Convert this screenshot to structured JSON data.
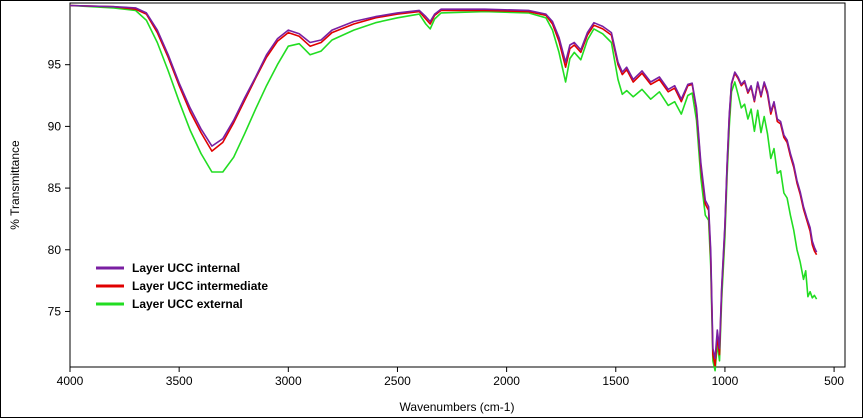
{
  "chart_data": {
    "type": "line",
    "xlabel": "Wavenumbers (cm-1)",
    "ylabel": "% Transmittance",
    "xlim": [
      4000,
      450
    ],
    "ylim": [
      70.5,
      100
    ],
    "x_ticks": [
      4000,
      3500,
      3000,
      2500,
      2000,
      1500,
      1000,
      500
    ],
    "y_ticks": [
      75,
      80,
      85,
      90,
      95
    ],
    "grid": false,
    "legend_position": "lower-left",
    "series": [
      {
        "name": "Layer UCC internal",
        "color": "#7a1fa2",
        "points": [
          [
            4000,
            99.8
          ],
          [
            3800,
            99.7
          ],
          [
            3700,
            99.6
          ],
          [
            3650,
            99.2
          ],
          [
            3600,
            97.8
          ],
          [
            3550,
            95.8
          ],
          [
            3500,
            93.5
          ],
          [
            3450,
            91.5
          ],
          [
            3400,
            89.8
          ],
          [
            3350,
            88.4
          ],
          [
            3300,
            89
          ],
          [
            3250,
            90.5
          ],
          [
            3200,
            92.3
          ],
          [
            3150,
            94
          ],
          [
            3100,
            95.8
          ],
          [
            3050,
            97.1
          ],
          [
            3000,
            97.8
          ],
          [
            2950,
            97.5
          ],
          [
            2900,
            96.8
          ],
          [
            2850,
            97
          ],
          [
            2800,
            97.8
          ],
          [
            2700,
            98.5
          ],
          [
            2600,
            98.9
          ],
          [
            2500,
            99.2
          ],
          [
            2400,
            99.4
          ],
          [
            2370,
            98.9
          ],
          [
            2350,
            98.5
          ],
          [
            2330,
            99.1
          ],
          [
            2300,
            99.5
          ],
          [
            2100,
            99.5
          ],
          [
            1900,
            99.4
          ],
          [
            1820,
            99.1
          ],
          [
            1790,
            98.5
          ],
          [
            1760,
            97.2
          ],
          [
            1730,
            95.2
          ],
          [
            1710,
            96.6
          ],
          [
            1690,
            96.8
          ],
          [
            1660,
            96.2
          ],
          [
            1630,
            97.6
          ],
          [
            1600,
            98.4
          ],
          [
            1560,
            98.1
          ],
          [
            1520,
            97.6
          ],
          [
            1490,
            95.2
          ],
          [
            1470,
            94.4
          ],
          [
            1450,
            94.8
          ],
          [
            1420,
            93.8
          ],
          [
            1380,
            94.5
          ],
          [
            1340,
            93.6
          ],
          [
            1300,
            94
          ],
          [
            1260,
            93
          ],
          [
            1230,
            93.3
          ],
          [
            1200,
            92.2
          ],
          [
            1170,
            93.4
          ],
          [
            1150,
            93.5
          ],
          [
            1130,
            91.5
          ],
          [
            1110,
            87
          ],
          [
            1090,
            84
          ],
          [
            1075,
            83.5
          ],
          [
            1065,
            80
          ],
          [
            1055,
            72
          ],
          [
            1045,
            71.2
          ],
          [
            1035,
            73.5
          ],
          [
            1025,
            72
          ],
          [
            1015,
            77
          ],
          [
            1000,
            82
          ],
          [
            990,
            87
          ],
          [
            980,
            91
          ],
          [
            970,
            93.5
          ],
          [
            955,
            94.4
          ],
          [
            940,
            94
          ],
          [
            925,
            93.4
          ],
          [
            910,
            93.7
          ],
          [
            895,
            92.8
          ],
          [
            880,
            93.3
          ],
          [
            865,
            92.1
          ],
          [
            850,
            93.6
          ],
          [
            835,
            92.5
          ],
          [
            820,
            93.6
          ],
          [
            805,
            92.8
          ],
          [
            790,
            91.2
          ],
          [
            775,
            92
          ],
          [
            760,
            90.6
          ],
          [
            745,
            90.4
          ],
          [
            730,
            89.3
          ],
          [
            715,
            88.9
          ],
          [
            700,
            87.8
          ],
          [
            685,
            86.9
          ],
          [
            670,
            85.6
          ],
          [
            655,
            84.7
          ],
          [
            640,
            83.5
          ],
          [
            625,
            82.6
          ],
          [
            610,
            81.8
          ],
          [
            600,
            80.7
          ],
          [
            590,
            80.2
          ],
          [
            580,
            79.8
          ]
        ]
      },
      {
        "name": "Layer UCC intermediate",
        "color": "#e00000",
        "points": [
          [
            4000,
            99.8
          ],
          [
            3800,
            99.7
          ],
          [
            3700,
            99.5
          ],
          [
            3650,
            99.1
          ],
          [
            3600,
            97.6
          ],
          [
            3550,
            95.6
          ],
          [
            3500,
            93.3
          ],
          [
            3450,
            91.2
          ],
          [
            3400,
            89.5
          ],
          [
            3350,
            88
          ],
          [
            3300,
            88.7
          ],
          [
            3250,
            90.3
          ],
          [
            3200,
            92.1
          ],
          [
            3150,
            93.9
          ],
          [
            3100,
            95.6
          ],
          [
            3050,
            96.9
          ],
          [
            3000,
            97.6
          ],
          [
            2950,
            97.3
          ],
          [
            2900,
            96.5
          ],
          [
            2850,
            96.8
          ],
          [
            2800,
            97.6
          ],
          [
            2700,
            98.3
          ],
          [
            2600,
            98.8
          ],
          [
            2500,
            99.1
          ],
          [
            2400,
            99.3
          ],
          [
            2370,
            98.7
          ],
          [
            2350,
            98.3
          ],
          [
            2330,
            99
          ],
          [
            2300,
            99.4
          ],
          [
            2100,
            99.4
          ],
          [
            1900,
            99.3
          ],
          [
            1820,
            99
          ],
          [
            1790,
            98.3
          ],
          [
            1760,
            96.9
          ],
          [
            1730,
            94.8
          ],
          [
            1710,
            96.3
          ],
          [
            1690,
            96.6
          ],
          [
            1660,
            96
          ],
          [
            1630,
            97.4
          ],
          [
            1600,
            98.2
          ],
          [
            1560,
            97.9
          ],
          [
            1520,
            97.4
          ],
          [
            1490,
            95
          ],
          [
            1470,
            94.2
          ],
          [
            1450,
            94.6
          ],
          [
            1420,
            93.6
          ],
          [
            1380,
            94.3
          ],
          [
            1340,
            93.4
          ],
          [
            1300,
            93.8
          ],
          [
            1260,
            92.8
          ],
          [
            1230,
            93.1
          ],
          [
            1200,
            92
          ],
          [
            1170,
            93.3
          ],
          [
            1150,
            93.4
          ],
          [
            1130,
            91.3
          ],
          [
            1110,
            86.7
          ],
          [
            1090,
            83.7
          ],
          [
            1075,
            83.2
          ],
          [
            1065,
            79.5
          ],
          [
            1055,
            71.5
          ],
          [
            1045,
            70.6
          ],
          [
            1035,
            73
          ],
          [
            1025,
            71.5
          ],
          [
            1015,
            76.8
          ],
          [
            1000,
            81.8
          ],
          [
            990,
            86.8
          ],
          [
            980,
            90.8
          ],
          [
            970,
            93.4
          ],
          [
            955,
            94.3
          ],
          [
            940,
            93.9
          ],
          [
            925,
            93.3
          ],
          [
            910,
            93.6
          ],
          [
            895,
            92.7
          ],
          [
            880,
            93.2
          ],
          [
            865,
            92
          ],
          [
            850,
            93.5
          ],
          [
            835,
            92.4
          ],
          [
            820,
            93.5
          ],
          [
            805,
            92.6
          ],
          [
            790,
            91
          ],
          [
            775,
            91.9
          ],
          [
            760,
            90.4
          ],
          [
            745,
            90.2
          ],
          [
            730,
            89.1
          ],
          [
            715,
            88.7
          ],
          [
            700,
            87.6
          ],
          [
            685,
            86.7
          ],
          [
            670,
            85.4
          ],
          [
            655,
            84.5
          ],
          [
            640,
            83.3
          ],
          [
            625,
            82.4
          ],
          [
            610,
            81.5
          ],
          [
            600,
            80.4
          ],
          [
            590,
            79.9
          ],
          [
            580,
            79.6
          ]
        ]
      },
      {
        "name": "Layer UCC external",
        "color": "#22dd22",
        "points": [
          [
            4000,
            99.8
          ],
          [
            3800,
            99.6
          ],
          [
            3700,
            99.4
          ],
          [
            3650,
            98.6
          ],
          [
            3600,
            96.8
          ],
          [
            3550,
            94.5
          ],
          [
            3500,
            92
          ],
          [
            3450,
            89.7
          ],
          [
            3400,
            87.8
          ],
          [
            3350,
            86.3
          ],
          [
            3300,
            86.3
          ],
          [
            3250,
            87.5
          ],
          [
            3200,
            89.4
          ],
          [
            3150,
            91.4
          ],
          [
            3100,
            93.3
          ],
          [
            3050,
            95
          ],
          [
            3000,
            96.5
          ],
          [
            2950,
            96.7
          ],
          [
            2900,
            95.8
          ],
          [
            2850,
            96.1
          ],
          [
            2800,
            97
          ],
          [
            2700,
            97.8
          ],
          [
            2600,
            98.4
          ],
          [
            2500,
            98.8
          ],
          [
            2400,
            99.1
          ],
          [
            2370,
            98.3
          ],
          [
            2350,
            97.9
          ],
          [
            2330,
            98.7
          ],
          [
            2300,
            99.2
          ],
          [
            2100,
            99.3
          ],
          [
            1900,
            99.2
          ],
          [
            1820,
            98.8
          ],
          [
            1790,
            97.8
          ],
          [
            1760,
            96
          ],
          [
            1730,
            93.6
          ],
          [
            1710,
            95.5
          ],
          [
            1690,
            96
          ],
          [
            1660,
            95.4
          ],
          [
            1630,
            97
          ],
          [
            1600,
            97.9
          ],
          [
            1560,
            97.5
          ],
          [
            1520,
            96.8
          ],
          [
            1490,
            93.8
          ],
          [
            1470,
            92.6
          ],
          [
            1450,
            92.9
          ],
          [
            1420,
            92.4
          ],
          [
            1380,
            93
          ],
          [
            1340,
            92.2
          ],
          [
            1300,
            92.8
          ],
          [
            1260,
            91.7
          ],
          [
            1230,
            92
          ],
          [
            1200,
            91
          ],
          [
            1170,
            92.5
          ],
          [
            1150,
            92.7
          ],
          [
            1130,
            90.5
          ],
          [
            1110,
            85.8
          ],
          [
            1090,
            82.8
          ],
          [
            1075,
            82.4
          ],
          [
            1065,
            78.7
          ],
          [
            1055,
            71
          ],
          [
            1045,
            70.2
          ],
          [
            1035,
            72.4
          ],
          [
            1025,
            71
          ],
          [
            1015,
            76
          ],
          [
            1000,
            81
          ],
          [
            990,
            86
          ],
          [
            980,
            90
          ],
          [
            970,
            92.8
          ],
          [
            955,
            93.6
          ],
          [
            940,
            92.6
          ],
          [
            925,
            91.5
          ],
          [
            910,
            91.8
          ],
          [
            895,
            90.6
          ],
          [
            880,
            91.4
          ],
          [
            865,
            89.6
          ],
          [
            850,
            91.3
          ],
          [
            835,
            89.5
          ],
          [
            820,
            90.8
          ],
          [
            805,
            89.4
          ],
          [
            790,
            87.4
          ],
          [
            775,
            88.2
          ],
          [
            760,
            86.2
          ],
          [
            745,
            86.4
          ],
          [
            730,
            84.6
          ],
          [
            715,
            84.2
          ],
          [
            700,
            82.8
          ],
          [
            685,
            81.6
          ],
          [
            670,
            80
          ],
          [
            655,
            79
          ],
          [
            640,
            77.6
          ],
          [
            630,
            78.3
          ],
          [
            620,
            76.2
          ],
          [
            610,
            76.6
          ],
          [
            600,
            76.1
          ],
          [
            590,
            76.3
          ],
          [
            580,
            76
          ]
        ]
      }
    ]
  }
}
